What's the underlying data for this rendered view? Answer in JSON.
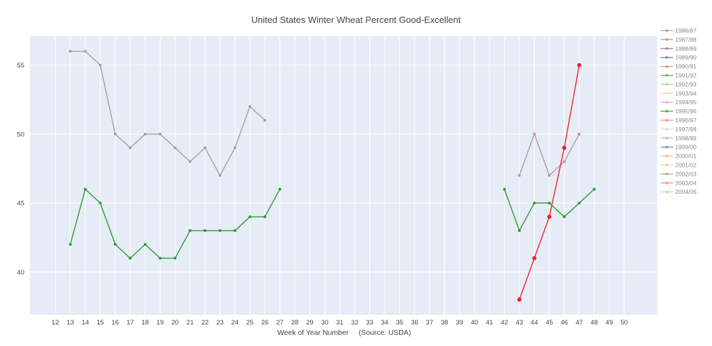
{
  "chart_data": {
    "type": "line",
    "title": "United States Winter Wheat Percent Good-Excellent",
    "xlabel": "Week of Year Number     (Source: USDA)",
    "ylabel": "",
    "xlim": [
      10.3,
      52.2
    ],
    "ylim": [
      36.9,
      57.1
    ],
    "x_ticks": [
      12,
      13,
      14,
      15,
      16,
      17,
      18,
      19,
      20,
      21,
      22,
      23,
      24,
      25,
      26,
      27,
      28,
      29,
      30,
      31,
      32,
      33,
      34,
      35,
      36,
      37,
      38,
      39,
      40,
      41,
      42,
      43,
      44,
      45,
      46,
      47,
      48,
      49,
      50
    ],
    "x_tick_labels": [
      "12",
      "13",
      "14",
      "15",
      "16",
      "17",
      "18",
      "19",
      "20",
      "21",
      "22",
      "23",
      "24",
      "25",
      "26",
      "27",
      "28",
      "29",
      "30",
      "31",
      "32",
      "33",
      "34",
      "35",
      "36",
      "37",
      "38",
      "39",
      "40",
      "41",
      "42",
      "43",
      "44",
      "45",
      "46",
      "47",
      "48",
      "49",
      "50"
    ],
    "y_ticks": [
      40,
      45,
      50,
      55
    ],
    "grid": true,
    "legend_position": "right",
    "legend": [
      {
        "name": "1986/87",
        "color": "#9aa0b4"
      },
      {
        "name": "1987/88",
        "color": "#c98a6e"
      },
      {
        "name": "1988/89",
        "color": "#b77aa6"
      },
      {
        "name": "1989/90",
        "color": "#8a7fb8"
      },
      {
        "name": "1990/91",
        "color": "#e08a7a"
      },
      {
        "name": "1991/92",
        "color": "#6aa86a"
      },
      {
        "name": "1992/93",
        "color": "#9fd88a"
      },
      {
        "name": "1993/94",
        "color": "#f0d3a6"
      },
      {
        "name": "1994/95",
        "color": "#e2a6e2"
      },
      {
        "name": "1995/96",
        "color": "#3fa83f"
      },
      {
        "name": "1996/97",
        "color": "#f08a8a"
      },
      {
        "name": "1997/98",
        "color": "#d8d8d8"
      },
      {
        "name": "1998/99",
        "color": "#dcaadc"
      },
      {
        "name": "1999/00",
        "color": "#7d8fb8"
      },
      {
        "name": "2000/01",
        "color": "#f5b89a"
      },
      {
        "name": "2001/02",
        "color": "#f2c9a8"
      },
      {
        "name": "2002/03",
        "color": "#a8a888"
      },
      {
        "name": "2003/04",
        "color": "#f09090"
      },
      {
        "name": "2004/05",
        "color": "#a6e6cc"
      }
    ],
    "series": [
      {
        "name": "1988/89",
        "color": "#b399a5",
        "segments": [
          {
            "x": [
              13,
              14,
              15,
              16,
              17,
              18,
              19,
              20,
              21,
              22,
              23,
              24,
              25,
              26
            ],
            "y": [
              56,
              56,
              55,
              50,
              49,
              50,
              50,
              49,
              48,
              49,
              47,
              49,
              52,
              51
            ]
          },
          {
            "x": [
              43,
              44,
              45,
              46,
              47
            ],
            "y": [
              47,
              50,
              47,
              48,
              50
            ]
          }
        ]
      },
      {
        "name": "1995/96",
        "color": "#2e9a2e",
        "segments": [
          {
            "x": [
              13,
              14,
              15,
              16,
              17,
              18,
              19,
              20,
              21,
              22,
              23,
              24,
              25,
              26,
              27
            ],
            "y": [
              42,
              46,
              45,
              42,
              41,
              42,
              41,
              41,
              43,
              43,
              43,
              43,
              44,
              44,
              46
            ]
          },
          {
            "x": [
              42,
              43,
              44,
              45,
              46,
              47,
              48
            ],
            "y": [
              46,
              43,
              45,
              45,
              44,
              45,
              46
            ]
          }
        ]
      },
      {
        "name": "2003/04",
        "color": "#f0222a",
        "segments": [
          {
            "x": [
              43,
              44,
              45,
              46,
              47
            ],
            "y": [
              38,
              41,
              44,
              49,
              55
            ]
          }
        ]
      }
    ]
  }
}
